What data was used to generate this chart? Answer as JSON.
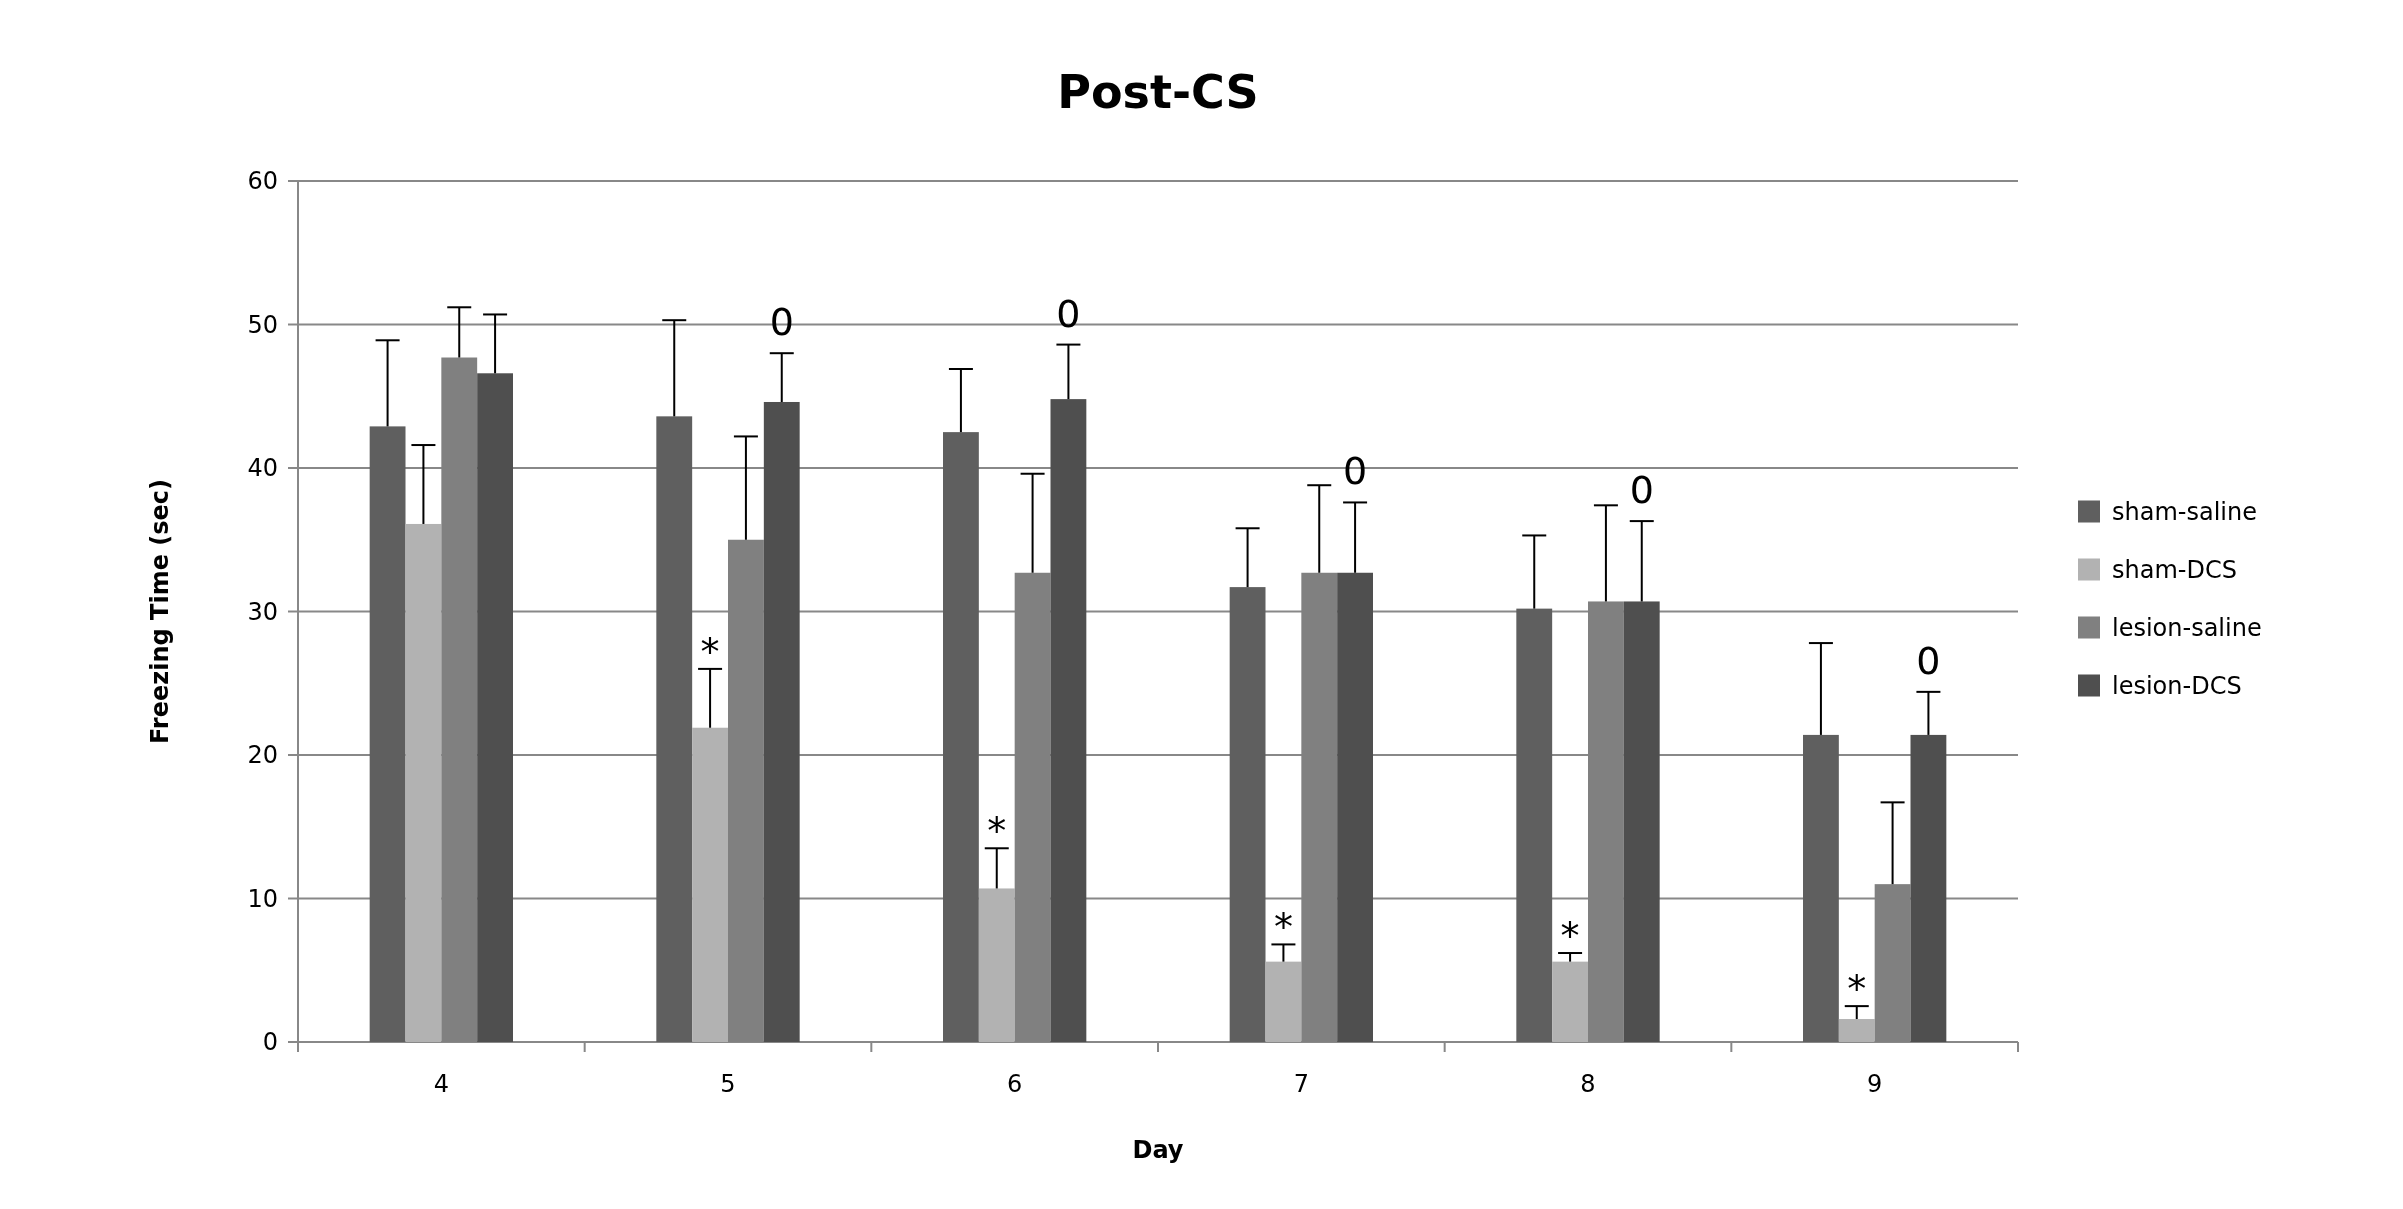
{
  "chart_data": {
    "type": "bar",
    "title": "Post-CS",
    "xlabel": "Day",
    "ylabel": "Freezing Time (sec)",
    "categories": [
      "4",
      "5",
      "6",
      "7",
      "8",
      "9"
    ],
    "series": [
      {
        "name": "sham-saline",
        "color": "#5f5f5f",
        "values": [
          42.9,
          43.6,
          42.5,
          31.7,
          30.2,
          21.4
        ],
        "errors": [
          [
            42.9,
            48.9
          ],
          [
            43.6,
            50.3
          ],
          [
            42.5,
            46.9
          ],
          [
            31.7,
            35.8
          ],
          [
            30.2,
            35.3
          ],
          [
            21.4,
            27.8
          ]
        ]
      },
      {
        "name": "sham-DCS",
        "color": "#b2b2b2",
        "values": [
          36.1,
          21.9,
          10.7,
          5.6,
          5.6,
          1.6
        ],
        "errors": [
          [
            36.1,
            41.6
          ],
          [
            21.9,
            26.0
          ],
          [
            10.7,
            13.5
          ],
          [
            5.6,
            6.8
          ],
          [
            5.6,
            6.2
          ],
          [
            1.6,
            2.5
          ]
        ]
      },
      {
        "name": "lesion-saline",
        "color": "#808080",
        "values": [
          47.7,
          35.0,
          32.7,
          32.7,
          30.7,
          11.0
        ],
        "errors": [
          [
            47.7,
            51.2
          ],
          [
            35.0,
            42.2
          ],
          [
            32.7,
            39.6
          ],
          [
            32.7,
            38.8
          ],
          [
            30.7,
            37.4
          ],
          [
            11.0,
            16.7
          ]
        ]
      },
      {
        "name": "lesion-DCS",
        "color": "#4f4f4f",
        "values": [
          46.6,
          44.6,
          44.8,
          32.7,
          30.7,
          21.4
        ],
        "errors": [
          [
            46.6,
            50.7
          ],
          [
            44.6,
            48.0
          ],
          [
            44.8,
            48.6
          ],
          [
            32.7,
            37.6
          ],
          [
            30.7,
            36.3
          ],
          [
            21.4,
            24.4
          ]
        ]
      }
    ],
    "annotations": [
      {
        "text": "*",
        "x": "5",
        "y": 26.0
      },
      {
        "text": "*",
        "x": "6",
        "y": 13.5
      },
      {
        "text": "*",
        "x": "7",
        "y": 6.8
      },
      {
        "text": "*",
        "x": "8",
        "y": 6.2
      },
      {
        "text": "*",
        "x": "9",
        "y": 2.5
      },
      "0",
      "0",
      "0",
      "0",
      "0"
    ],
    "ylim": [
      0,
      60
    ],
    "yticks": [
      0,
      10,
      20,
      30,
      40,
      50,
      60
    ],
    "grid": "y",
    "legend": "right"
  }
}
